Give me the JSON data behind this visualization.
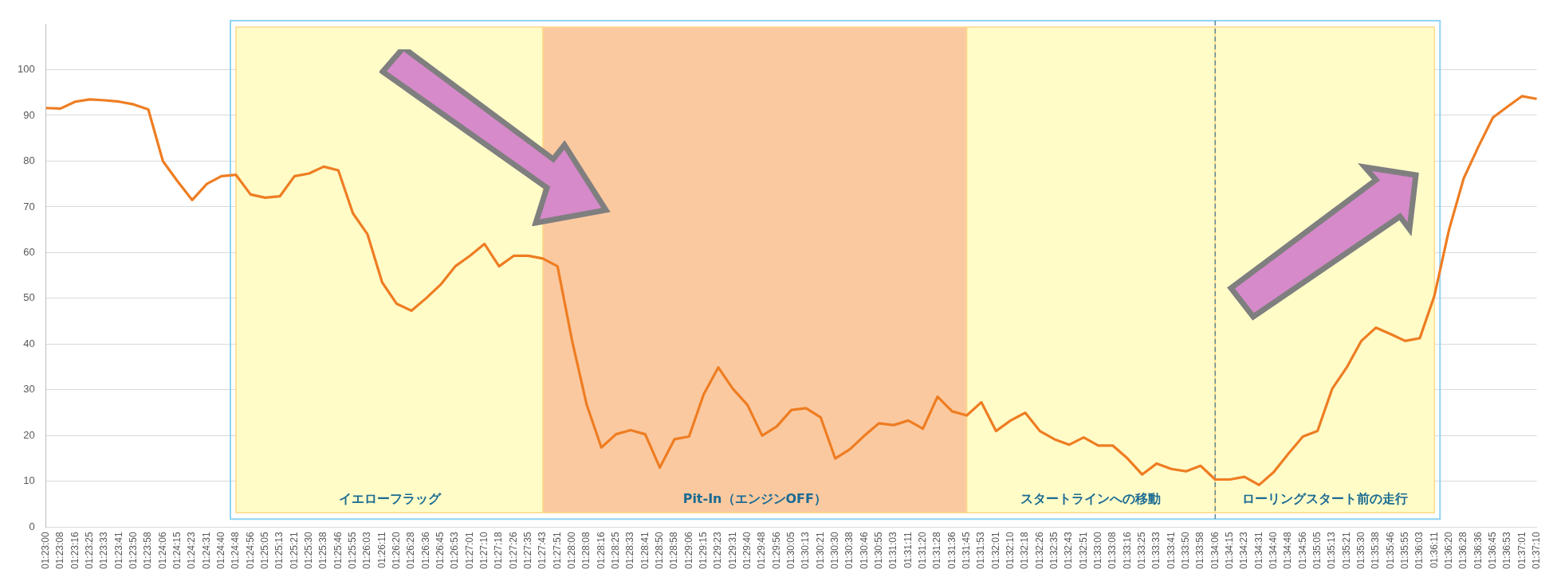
{
  "chart_data": {
    "type": "line",
    "categories": [
      "01:23:00",
      "01:23:08",
      "01:23:16",
      "01:23:25",
      "01:23:33",
      "01:23:41",
      "01:23:50",
      "01:23:58",
      "01:24:06",
      "01:24:15",
      "01:24:23",
      "01:24:31",
      "01:24:40",
      "01:24:48",
      "01:24:56",
      "01:25:05",
      "01:25:13",
      "01:25:21",
      "01:25:30",
      "01:25:38",
      "01:25:46",
      "01:25:55",
      "01:26:03",
      "01:26:11",
      "01:26:20",
      "01:26:28",
      "01:26:36",
      "01:26:45",
      "01:26:53",
      "01:27:01",
      "01:27:10",
      "01:27:18",
      "01:27:26",
      "01:27:35",
      "01:27:43",
      "01:27:51",
      "01:28:00",
      "01:28:08",
      "01:28:16",
      "01:28:25",
      "01:28:33",
      "01:28:41",
      "01:28:50",
      "01:28:58",
      "01:29:06",
      "01:29:15",
      "01:29:23",
      "01:29:31",
      "01:29:40",
      "01:29:48",
      "01:29:56",
      "01:30:05",
      "01:30:13",
      "01:30:21",
      "01:30:30",
      "01:30:38",
      "01:30:46",
      "01:30:55",
      "01:31:03",
      "01:31:11",
      "01:31:20",
      "01:31:28",
      "01:31:36",
      "01:31:45",
      "01:31:53",
      "01:32:01",
      "01:32:10",
      "01:32:18",
      "01:32:26",
      "01:32:35",
      "01:32:43",
      "01:32:51",
      "01:33:00",
      "01:33:08",
      "01:33:16",
      "01:33:25",
      "01:33:33",
      "01:33:41",
      "01:33:50",
      "01:33:58",
      "01:34:06",
      "01:34:15",
      "01:34:23",
      "01:34:31",
      "01:34:40",
      "01:34:48",
      "01:34:56",
      "01:35:05",
      "01:35:13",
      "01:35:21",
      "01:35:30",
      "01:35:38",
      "01:35:46",
      "01:35:55",
      "01:36:03",
      "01:36:11",
      "01:36:20",
      "01:36:28",
      "01:36:36",
      "01:36:45",
      "01:36:53",
      "01:37:01",
      "01:37:10"
    ],
    "series": [
      {
        "color": "#ee7d22",
        "values": [
          91.6,
          91.5,
          93,
          93.5,
          93.3,
          93,
          92.4,
          91.3,
          80,
          75.6,
          71.5,
          75,
          76.7,
          77,
          72.7,
          72,
          72.3,
          76.7,
          77.3,
          78.8,
          78,
          68.6,
          64,
          53.5,
          48.8,
          47.3,
          50,
          53,
          57,
          59.3,
          61.9,
          57,
          59.3,
          59.3,
          58.7,
          57,
          40.7,
          26.7,
          17.4,
          20.3,
          21.2,
          20.3,
          13,
          19.2,
          19.8,
          29,
          34.9,
          30.2,
          26.7,
          20,
          22,
          25.6,
          26,
          24,
          15,
          17,
          20,
          22.7,
          22.3,
          23.3,
          21.5,
          28.5,
          25.3,
          24.4,
          27.3,
          21,
          23.3,
          25,
          21,
          19.2,
          18,
          19.6,
          17.8,
          17.8,
          15,
          11.5,
          13.9,
          12.7,
          12.2,
          13.4,
          10.4,
          10.4,
          11,
          9.2,
          12,
          16,
          19.8,
          21,
          30.2,
          34.9,
          40.7,
          43.6,
          42.2,
          40.7,
          41.3,
          50.6,
          65,
          76.2,
          83.1,
          89.5,
          91.9,
          94.2,
          93.6
        ]
      }
    ],
    "ylim": [
      0,
      110
    ],
    "yticks": [
      0,
      10,
      20,
      30,
      40,
      50,
      60,
      70,
      80,
      90,
      100
    ],
    "grid": "y",
    "legend": false,
    "marker": "none",
    "line_style": "solid",
    "bands": [
      {
        "axis": "x",
        "from": "01:24:48",
        "to": "01:27:43",
        "label": "イエローフラッグ",
        "color": "#fffcc8"
      },
      {
        "axis": "x",
        "from": "01:27:43",
        "to": "01:31:45",
        "label": "Pit-In（エンジンOFF）",
        "color": "#fbc9a0"
      },
      {
        "axis": "x",
        "from": "01:31:45",
        "to": "01:34:06",
        "label": "スタートラインへの移動",
        "color": "#fffcc8"
      },
      {
        "axis": "x",
        "from": "01:34:06",
        "to": "01:36:11",
        "label": "ローリングスタート前の走行",
        "color": "#fffcc8"
      }
    ],
    "ref_lines": [
      {
        "axis": "x",
        "value": "01:34:06",
        "color": "#5f8a96",
        "line_style": "dashed"
      }
    ]
  }
}
